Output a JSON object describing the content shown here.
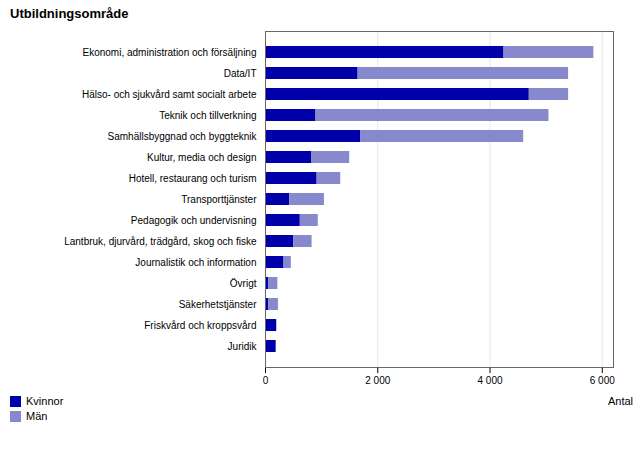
{
  "chart_data": {
    "type": "bar",
    "orientation": "horizontal",
    "stacked": true,
    "title": "Utbildningsområde",
    "xlabel": "Antal",
    "categories": [
      "Ekonomi, administration och försäljning",
      "Data/IT",
      "Hälso- och sjukvård samt socialt arbete",
      "Teknik och tillverkning",
      "Samhällsbyggnad och byggteknik",
      "Kultur, media och design",
      "Hotell, restaurang och turism",
      "Transporttjänster",
      "Pedagogik och undervisning",
      "Lantbruk, djurvård, trädgård, skog och fiske",
      "Journalistik och information",
      "Övrigt",
      "Säkerhetstjänster",
      "Friskvård och kroppsvård",
      "Juridik"
    ],
    "series": [
      {
        "name": "Kvinnor",
        "color": "#0000AA",
        "values": [
          4250,
          1650,
          4700,
          900,
          1700,
          820,
          920,
          430,
          620,
          500,
          330,
          60,
          60,
          200,
          190
        ]
      },
      {
        "name": "Män",
        "color": "#8888CC",
        "values": [
          1600,
          3750,
          700,
          4150,
          2900,
          680,
          420,
          620,
          320,
          330,
          130,
          160,
          170,
          0,
          0
        ]
      }
    ],
    "xlim": [
      0,
      6200
    ],
    "xticks": [
      0,
      {
        "value": 2000,
        "label": "2 000"
      },
      {
        "value": 4000,
        "label": "4 000"
      },
      {
        "value": 6000,
        "label": "6 000"
      }
    ],
    "grid": true,
    "legend": "lower left"
  }
}
